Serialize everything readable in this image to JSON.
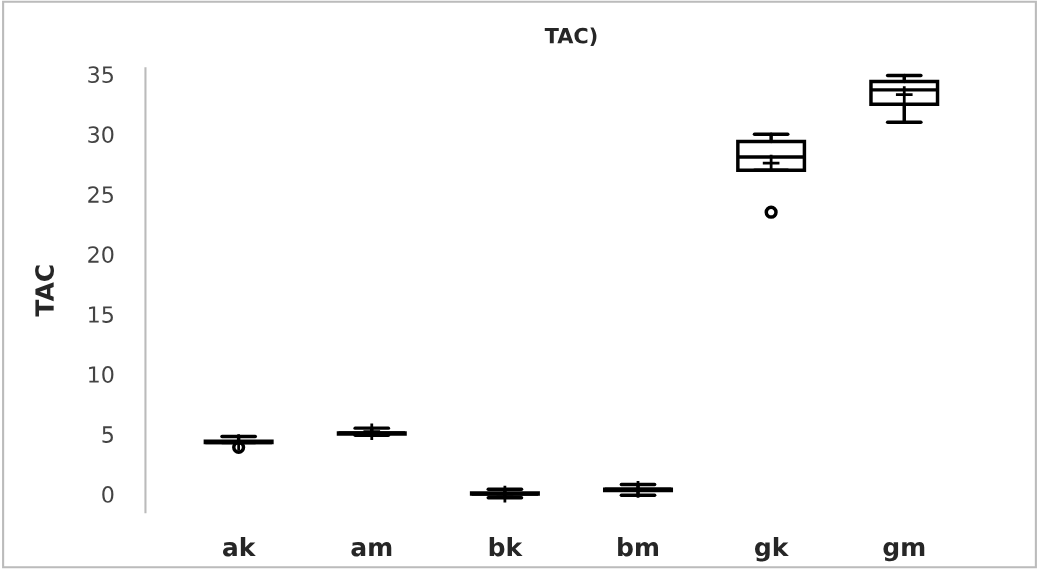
{
  "chart_data": {
    "type": "box",
    "title": "TAC)",
    "ylabel": "TAC",
    "categories": [
      "ak",
      "am",
      "bk",
      "bm",
      "gk",
      "gm"
    ],
    "boxes": [
      {
        "low": 4.3,
        "q1": 4.3,
        "median": 4.3,
        "q3": 4.4,
        "high": 4.8,
        "mean": 4.3,
        "outliers": [
          3.9
        ]
      },
      {
        "low": 4.9,
        "q1": 5.0,
        "median": 5.1,
        "q3": 5.1,
        "high": 5.5,
        "mean": 5.2
      },
      {
        "low": -0.3,
        "q1": 0.0,
        "median": 0.0,
        "q3": 0.1,
        "high": 0.4,
        "mean": 0.0
      },
      {
        "low": -0.1,
        "q1": 0.3,
        "median": 0.4,
        "q3": 0.4,
        "high": 0.8,
        "mean": 0.4
      },
      {
        "low": 27.0,
        "q1": 27.0,
        "median": 28.1,
        "q3": 29.4,
        "high": 30.0,
        "mean": 27.6,
        "outliers": [
          23.5
        ]
      },
      {
        "low": 31.0,
        "q1": 32.5,
        "median": 33.7,
        "q3": 34.4,
        "high": 34.9,
        "mean": 33.3
      }
    ],
    "color": "#000000",
    "marker": "cross",
    "ylim": [
      -1.5,
      35.5
    ],
    "yticks": [
      0,
      5,
      10,
      15,
      20,
      25,
      30,
      35
    ],
    "grid": false
  }
}
